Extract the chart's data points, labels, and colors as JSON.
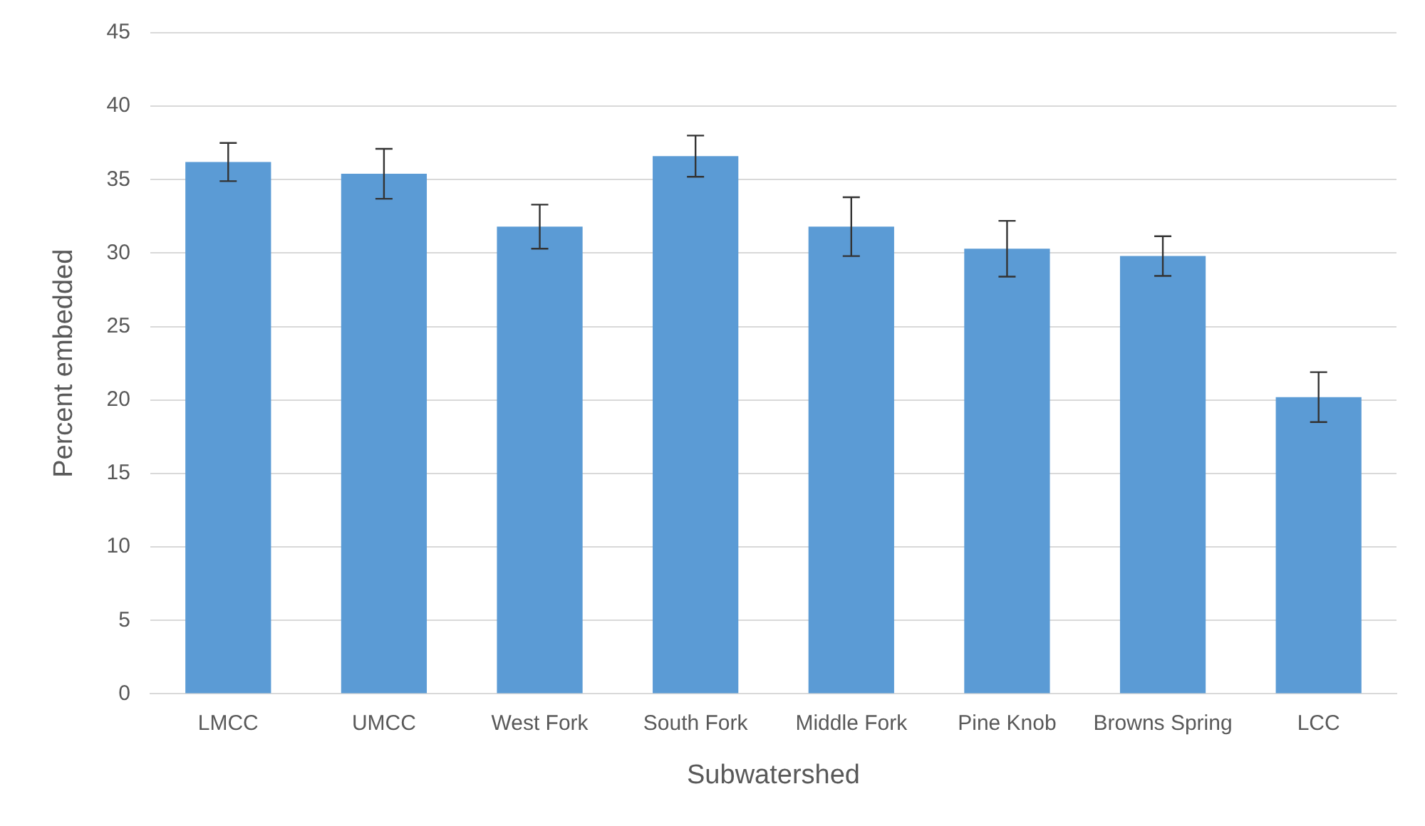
{
  "chart_data": {
    "type": "bar",
    "xlabel": "Subwatershed",
    "ylabel": "Percent embedded",
    "categories": [
      "LMCC",
      "UMCC",
      "West Fork",
      "South Fork",
      "Middle Fork",
      "Pine Knob",
      "Browns Spring",
      "LCC"
    ],
    "values": [
      36.2,
      35.4,
      31.8,
      36.6,
      31.8,
      30.3,
      29.8,
      20.2
    ],
    "errors": [
      1.3,
      1.7,
      1.5,
      1.4,
      2.0,
      1.9,
      1.35,
      1.7
    ],
    "color": "#5b9bd5",
    "ylim": [
      0,
      45
    ],
    "yticks": [
      0,
      5,
      10,
      15,
      20,
      25,
      30,
      35,
      40,
      45
    ],
    "grid": "y",
    "legend": false
  }
}
